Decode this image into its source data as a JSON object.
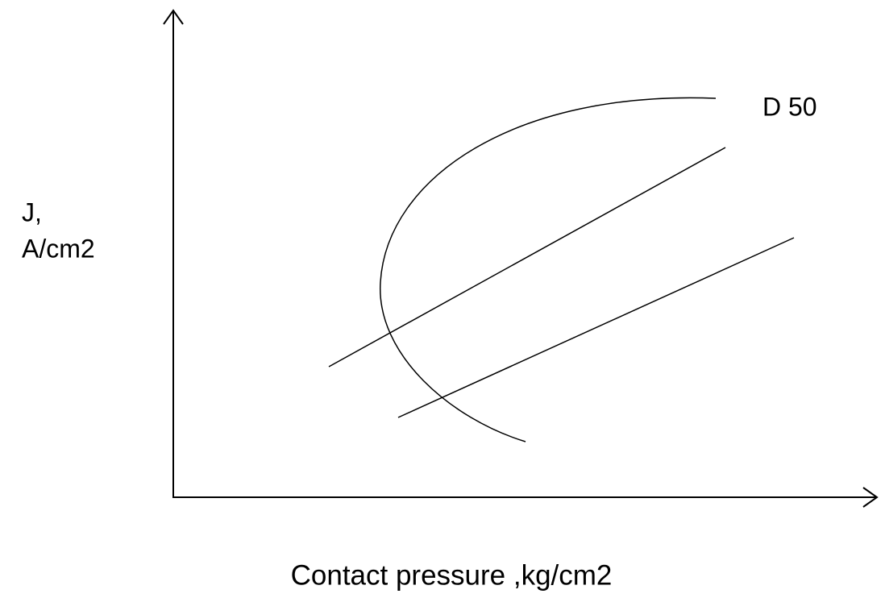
{
  "y_axis_label": [
    "J,",
    "A/cm2"
  ],
  "x_axis_label": "Contact pressure ,kg/cm2",
  "curve_label": "D 50"
}
